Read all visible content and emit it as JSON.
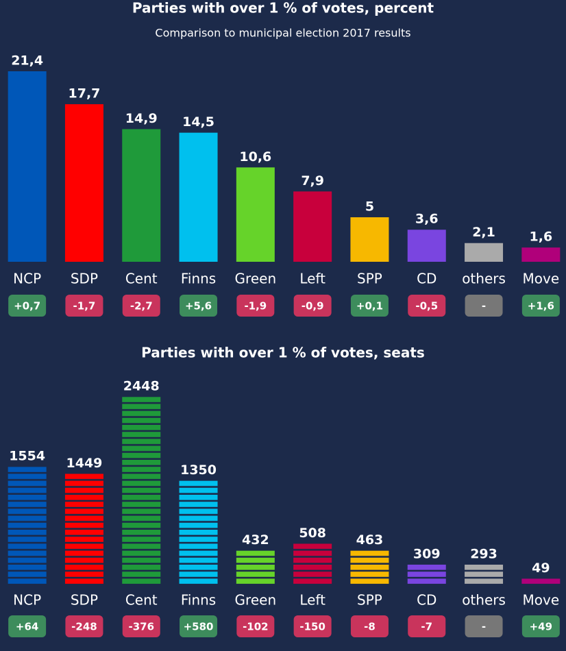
{
  "chart_data": [
    {
      "type": "bar",
      "title": "Parties with over 1 % of votes, percent",
      "subtitle": "Comparison to municipal election 2017 results",
      "categories": [
        "NCP",
        "SDP",
        "Cent",
        "Finns",
        "Green",
        "Left",
        "SPP",
        "CD",
        "others",
        "Move"
      ],
      "values": [
        21.4,
        17.7,
        14.9,
        14.5,
        10.6,
        7.9,
        5,
        3.6,
        2.1,
        1.6
      ],
      "value_labels": [
        "21,4",
        "17,7",
        "14,9",
        "14,5",
        "10,6",
        "7,9",
        "5",
        "3,6",
        "2,1",
        "1,6"
      ],
      "colors": [
        "#0057b8",
        "#ff0000",
        "#1f9a3a",
        "#00c0ee",
        "#66d32a",
        "#c8003c",
        "#f7b800",
        "#7a45e0",
        "#aaaaaa",
        "#b0007a"
      ],
      "changes": [
        0.7,
        -1.7,
        -2.7,
        5.6,
        -1.9,
        -0.9,
        0.1,
        -0.5,
        null,
        1.6
      ],
      "change_labels": [
        "+0,7",
        "-1,7",
        "-2,7",
        "+5,6",
        "-1,9",
        "-0,9",
        "+0,1",
        "-0,5",
        "-",
        "+1,6"
      ],
      "ylim": [
        0,
        21.4
      ]
    },
    {
      "type": "bar",
      "bar_style": "striped",
      "title": "Parties with over 1 % of votes, seats",
      "categories": [
        "NCP",
        "SDP",
        "Cent",
        "Finns",
        "Green",
        "Left",
        "SPP",
        "CD",
        "others",
        "Move"
      ],
      "values": [
        1554,
        1449,
        2448,
        1350,
        432,
        508,
        463,
        309,
        293,
        49
      ],
      "colors": [
        "#0057b8",
        "#ff0000",
        "#1f9a3a",
        "#00c0ee",
        "#66d32a",
        "#c8003c",
        "#f7b800",
        "#7a45e0",
        "#aaaaaa",
        "#b0007a"
      ],
      "changes": [
        64,
        -248,
        -376,
        580,
        -102,
        -150,
        -8,
        -7,
        null,
        49
      ],
      "change_labels": [
        "+64",
        "-248",
        "-376",
        "+580",
        "-102",
        "-150",
        "-8",
        "-7",
        "-",
        "+49"
      ],
      "ylim": [
        0,
        2448
      ]
    }
  ]
}
